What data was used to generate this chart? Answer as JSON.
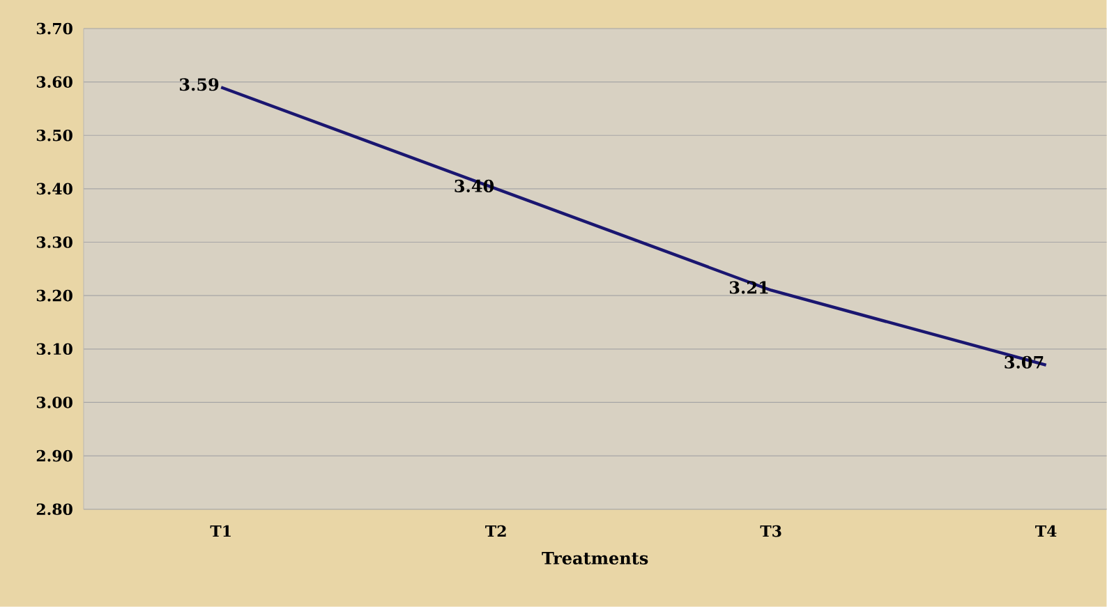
{
  "chart_data": {
    "type": "line",
    "xlabel": "Treatments",
    "categories": [
      "T1",
      "T2",
      "T3",
      "T4"
    ],
    "series": [
      {
        "color": "#1a1670",
        "values": [
          3.59,
          3.4,
          3.21,
          3.07
        ]
      }
    ],
    "value_labels": [
      "3.59",
      "3.40",
      "3.21",
      "3.07"
    ],
    "ylim": [
      2.8,
      3.7
    ],
    "yticks": [
      {
        "value": 2.8,
        "label": "2.80"
      },
      {
        "value": 2.9,
        "label": "2.90"
      },
      {
        "value": 3.0,
        "label": "3.00"
      },
      {
        "value": 3.1,
        "label": "3.10"
      },
      {
        "value": 3.2,
        "label": "3.20"
      },
      {
        "value": 3.3,
        "label": "3.30"
      },
      {
        "value": 3.4,
        "label": "3.40"
      },
      {
        "value": 3.5,
        "label": "3.50"
      },
      {
        "value": 3.6,
        "label": "3.60"
      },
      {
        "value": 3.7,
        "label": "3.70"
      }
    ],
    "grid": "y",
    "marker": "none",
    "line_style": "solid"
  }
}
